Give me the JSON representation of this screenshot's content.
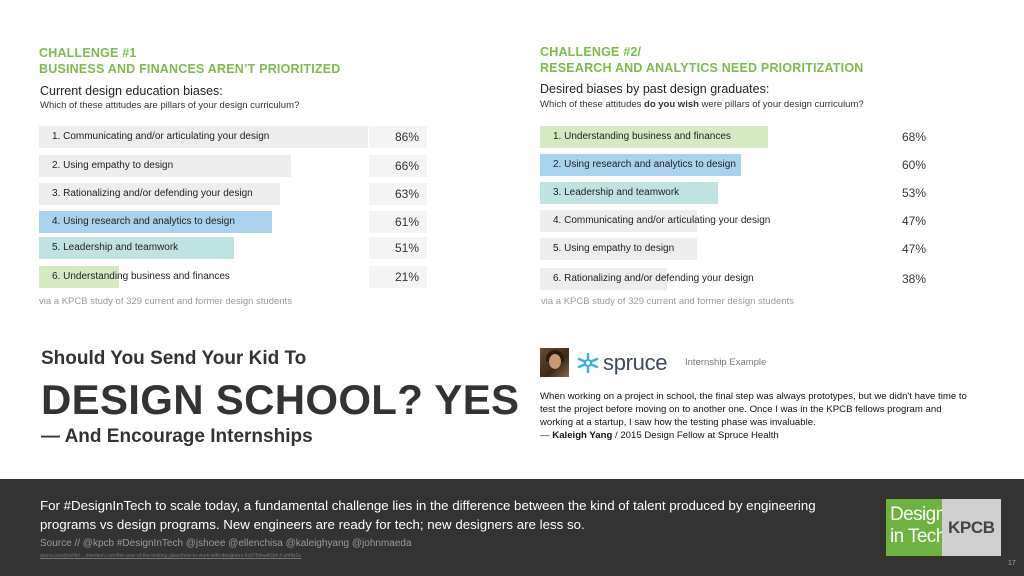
{
  "challenge1": {
    "heading_line1": "CHALLENGE #1",
    "heading_line2": "BUSINESS AND FINANCES AREN’T PRIORITIZED",
    "question_title": "Current design education biases:",
    "question_sub": "Which of these attitudes are pillars of your design curriculum?",
    "rows": [
      {
        "label": "1. Communicating and/or articulating your design",
        "pct": "86%",
        "value": 86,
        "color": "#ededed"
      },
      {
        "label": "2. Using empathy to design",
        "pct": "66%",
        "value": 66,
        "color": "#ededed"
      },
      {
        "label": "3. Rationalizing and/or defending your design",
        "pct": "63%",
        "value": 63,
        "color": "#ededed"
      },
      {
        "label": "4. Using research and analytics to design",
        "pct": "61%",
        "value": 61,
        "color": "#a9d2ef"
      },
      {
        "label": "5. Leadership and teamwork",
        "pct": "51%",
        "value": 51,
        "color": "#bfe3e1"
      },
      {
        "label": "6. Understanding business and finances",
        "pct": "21%",
        "value": 21,
        "color": "#d6eac2"
      }
    ],
    "via": "via a KPCB study of 329 current and former design students"
  },
  "challenge2": {
    "heading_line1": "CHALLENGE #2/",
    "heading_line2": "RESEARCH AND ANALYTICS NEED PRIORITIZATION",
    "question_title": "Desired biases by past design graduates:",
    "question_sub_pre": "Which of these attitudes ",
    "question_sub_bold": "do you wish",
    "question_sub_post": " were pillars of your design curriculum?",
    "rows": [
      {
        "label": "1. Understanding business and finances",
        "pct": "68%",
        "value": 68,
        "color": "#d6eac2"
      },
      {
        "label": "2. Using research and analytics to design",
        "pct": "60%",
        "value": 60,
        "color": "#a9d2ef"
      },
      {
        "label": "3. Leadership and teamwork",
        "pct": "53%",
        "value": 53,
        "color": "#bfe3e1"
      },
      {
        "label": "4. Communicating and/or articulating your design",
        "pct": "47%",
        "value": 47,
        "color": "#ededed"
      },
      {
        "label": "5. Using empathy to design",
        "pct": "47%",
        "value": 47,
        "color": "#ededed"
      },
      {
        "label": "6. Rationalizing and/or defending your design",
        "pct": "38%",
        "value": 38,
        "color": "#ededed"
      }
    ],
    "via": "via a KPCB study of 329 current and former design students"
  },
  "headline": {
    "line1": "Should You Send Your Kid To",
    "line2": "DESIGN SCHOOL? YES",
    "line3": "— And Encourage Internships"
  },
  "internship": {
    "brand": "spruce",
    "tag": "Internship Example",
    "quote": "When working on a project in school, the final step was always prototypes, but we didn't have time to test the project before moving on to another one. Once I was in the KPCB fellows program and working at a startup, I saw how the testing phase was invaluable.",
    "attr_prefix": "— ",
    "attr_name": "Kaleigh Yang",
    "attr_suffix": " / 2015 Design Fellow at Spruce Health"
  },
  "footer": {
    "text": "For #DesignInTech to scale today, a fundamental challenge lies in the difference between the kind of talent produced by engineering programs vs design programs. New engineers are ready for tech; new designers are less so.",
    "source": "Source // @kpcb #DesignInTech @jshoee @ellenchisa @kaleighyang @johnmaeda",
    "url": "quora.com/profile/... /medium.com/the-year-of-the-looking-glass/how-to-work-with-designers-6c975dea41b4 #.uhhfs2u",
    "page": "17",
    "logo_design": "Design",
    "logo_intech": "in Tech",
    "logo_kpcb": "KPCB"
  }
}
